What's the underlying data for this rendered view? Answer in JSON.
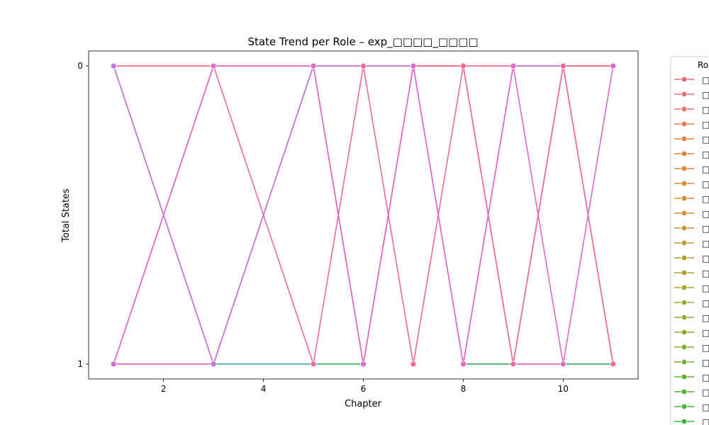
{
  "chart_data": {
    "type": "line",
    "title": "State Trend per Role – exp_□□□□_□□□□",
    "xlabel": "Chapter",
    "ylabel": "Total States",
    "xlim": [
      0.5,
      11.5
    ],
    "ylim": [
      1.05,
      -0.05
    ],
    "y_inverted": true,
    "x_ticks": [
      2,
      4,
      6,
      8,
      10
    ],
    "y_ticks": [
      0,
      1
    ],
    "grid": false,
    "legend_title": "Ro",
    "legend_position": "outside-right",
    "legend_entries": [
      {
        "name": "□",
        "color": "#f06672"
      },
      {
        "name": "□",
        "color": "#f06a6a"
      },
      {
        "name": "□",
        "color": "#f16d62"
      },
      {
        "name": "□",
        "color": "#ef7350"
      },
      {
        "name": "□",
        "color": "#ec7840"
      },
      {
        "name": "□",
        "color": "#e97d36"
      },
      {
        "name": "□",
        "color": "#e4822f"
      },
      {
        "name": "□",
        "color": "#de872d"
      },
      {
        "name": "□",
        "color": "#d78c2c"
      },
      {
        "name": "□",
        "color": "#d0912c"
      },
      {
        "name": "□",
        "color": "#c9952c"
      },
      {
        "name": "□",
        "color": "#c1992c"
      },
      {
        "name": "□",
        "color": "#b99c2c"
      },
      {
        "name": "□",
        "color": "#b19f2c"
      },
      {
        "name": "□",
        "color": "#a8a22c"
      },
      {
        "name": "□",
        "color": "#9ea52c"
      },
      {
        "name": "□",
        "color": "#94a82c"
      },
      {
        "name": "□",
        "color": "#8aaa2d"
      },
      {
        "name": "□",
        "color": "#7eac2e"
      },
      {
        "name": "□",
        "color": "#71ae30"
      },
      {
        "name": "□",
        "color": "#63b032"
      },
      {
        "name": "□",
        "color": "#55b235"
      },
      {
        "name": "□",
        "color": "#45b438"
      },
      {
        "name": "□",
        "color": "#39b540"
      }
    ],
    "series": [
      {
        "color": "#f0647a",
        "x": [
          1,
          3,
          5,
          6,
          7,
          8,
          9,
          10,
          11
        ],
        "y": [
          0,
          0,
          0,
          0,
          0,
          0,
          0,
          0,
          0
        ]
      },
      {
        "color": "#3aa7a8",
        "x": [
          3,
          5
        ],
        "y": [
          1,
          1
        ]
      },
      {
        "color": "#36ad68",
        "x": [
          5,
          6
        ],
        "y": [
          1,
          1
        ]
      },
      {
        "color": "#30ad5c",
        "x": [
          8,
          9
        ],
        "y": [
          1,
          1
        ]
      },
      {
        "color": "#2fad5a",
        "x": [
          10,
          11
        ],
        "y": [
          1,
          1
        ]
      },
      {
        "color": "#f0647a",
        "x": [
          1,
          3,
          5,
          6,
          7,
          8,
          9,
          10,
          11
        ],
        "y": [
          0,
          1,
          0,
          1,
          0,
          0,
          1,
          0,
          0
        ]
      },
      {
        "color": "#e35cc0",
        "x": [
          1,
          3
        ],
        "y": [
          1,
          1
        ]
      },
      {
        "color": "#e35cc0",
        "x": [
          9,
          10
        ],
        "y": [
          1,
          1
        ]
      },
      {
        "color": "#c373dc",
        "x": [
          1,
          3,
          5,
          6,
          7,
          8,
          9,
          10,
          11
        ],
        "y": [
          0,
          1,
          0,
          0,
          0,
          1,
          0,
          0,
          1
        ]
      },
      {
        "color": "#ec6aa0",
        "x": [
          1,
          3,
          5,
          6,
          7,
          8,
          9,
          10,
          11
        ],
        "y": [
          1,
          0,
          1,
          0,
          1,
          0,
          1,
          0,
          1
        ]
      },
      {
        "color": "#e068c8",
        "x": [
          1,
          3,
          5,
          6,
          7,
          8,
          9,
          10,
          11
        ],
        "y": [
          1,
          0,
          0,
          1,
          0,
          1,
          0,
          1,
          0
        ]
      }
    ]
  }
}
